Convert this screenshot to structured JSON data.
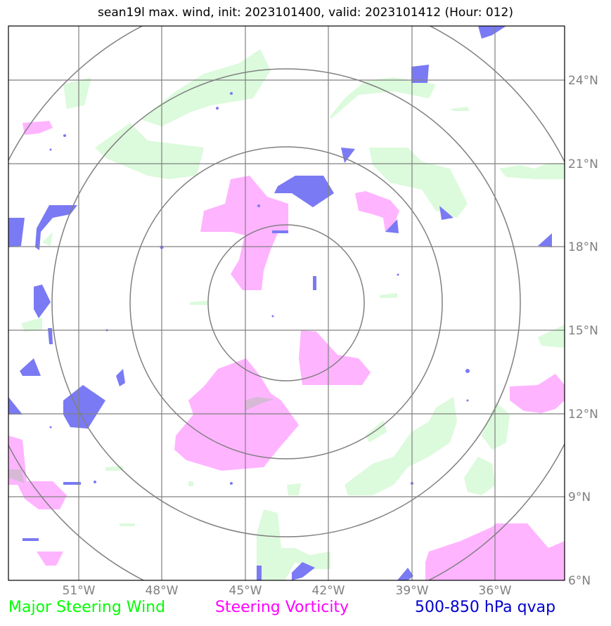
{
  "title": "sean19l max. wind, init: 2023101400, valid: 2023101412 (Hour: 012)",
  "map": {
    "lon_ticks": [
      "51°W",
      "48°W",
      "45°W",
      "42°W",
      "39°W",
      "36°W"
    ],
    "lat_ticks": [
      "24°N",
      "21°N",
      "18°N",
      "15°N",
      "12°N",
      "9°N",
      "6°N"
    ],
    "range_rings": 4
  },
  "legend": [
    {
      "label": "Major Steering Wind",
      "color": "#00ff00"
    },
    {
      "label": "Steering Vorticity",
      "color": "#ff00ff"
    },
    {
      "label": "500-850 hPa qvap",
      "color": "#0000cc"
    }
  ],
  "colors": {
    "wind_fill": "#dcfadc",
    "vorticity_fill": "#ffb4ff",
    "qvap_fill": "#7a7af4"
  }
}
